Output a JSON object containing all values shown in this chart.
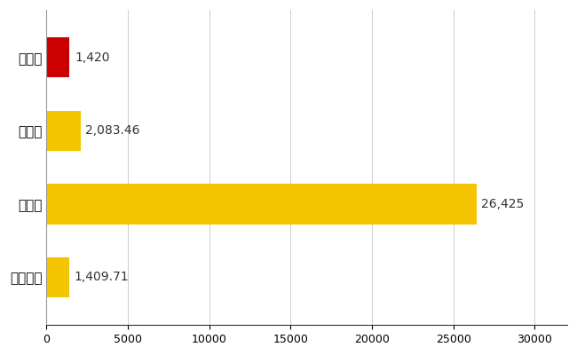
{
  "categories": [
    "城陽市",
    "県平均",
    "県最大",
    "全国平均"
  ],
  "values": [
    1420,
    2083.46,
    26425,
    1409.71
  ],
  "labels": [
    "1,420",
    "2,083.46",
    "26,425",
    "1,409.71"
  ],
  "colors": [
    "#cc0000",
    "#f5c400",
    "#f5c400",
    "#f5c400"
  ],
  "xlim": [
    0,
    32000
  ],
  "xticks": [
    0,
    5000,
    10000,
    15000,
    20000,
    25000,
    30000
  ],
  "background_color": "#ffffff",
  "grid_color": "#cccccc",
  "bar_height": 0.55,
  "label_fontsize": 10,
  "tick_fontsize": 9,
  "ytick_fontsize": 11
}
